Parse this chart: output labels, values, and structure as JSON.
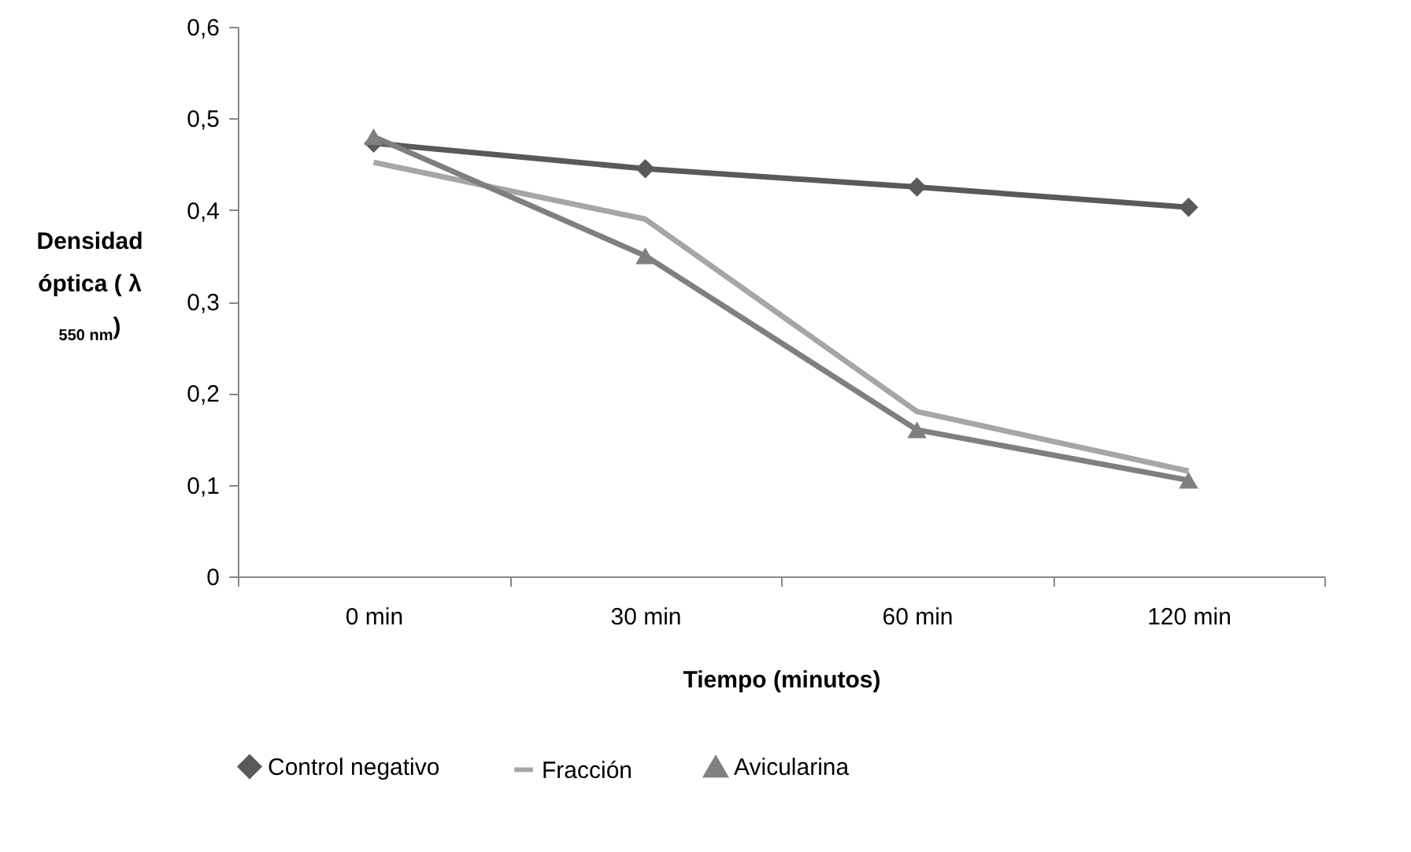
{
  "chart_data": {
    "type": "line",
    "xlabel": "Tiempo (minutos)",
    "ylabel": "Densidad óptica ( λ $_{550 nm}$)",
    "categories": [
      "0 min",
      "30 min",
      "60 min",
      "120 min"
    ],
    "series": [
      {
        "name": "Control negativo",
        "color": "#595959",
        "marker": "diamond",
        "values": [
          0.473,
          0.445,
          0.425,
          0.403
        ]
      },
      {
        "name": "Fracción",
        "color": "#a6a6a6",
        "marker": "none",
        "values": [
          0.452,
          0.39,
          0.18,
          0.115
        ]
      },
      {
        "name": "Avicularina",
        "color": "#7f7f7f",
        "marker": "triangle",
        "values": [
          0.48,
          0.35,
          0.16,
          0.105
        ]
      }
    ],
    "ylim": [
      0,
      0.6
    ],
    "yticks": [
      0,
      {
        "value": 0.1,
        "label": "0,1"
      },
      {
        "value": 0.2,
        "label": "0,2"
      },
      {
        "value": 0.3,
        "label": "0,3"
      },
      {
        "value": 0.4,
        "label": "0,4"
      },
      {
        "value": 0.5,
        "label": "0,5"
      },
      {
        "value": 0.6,
        "label": "0,6"
      }
    ],
    "grid": false,
    "legend": "bottom",
    "line_style": "solid"
  }
}
